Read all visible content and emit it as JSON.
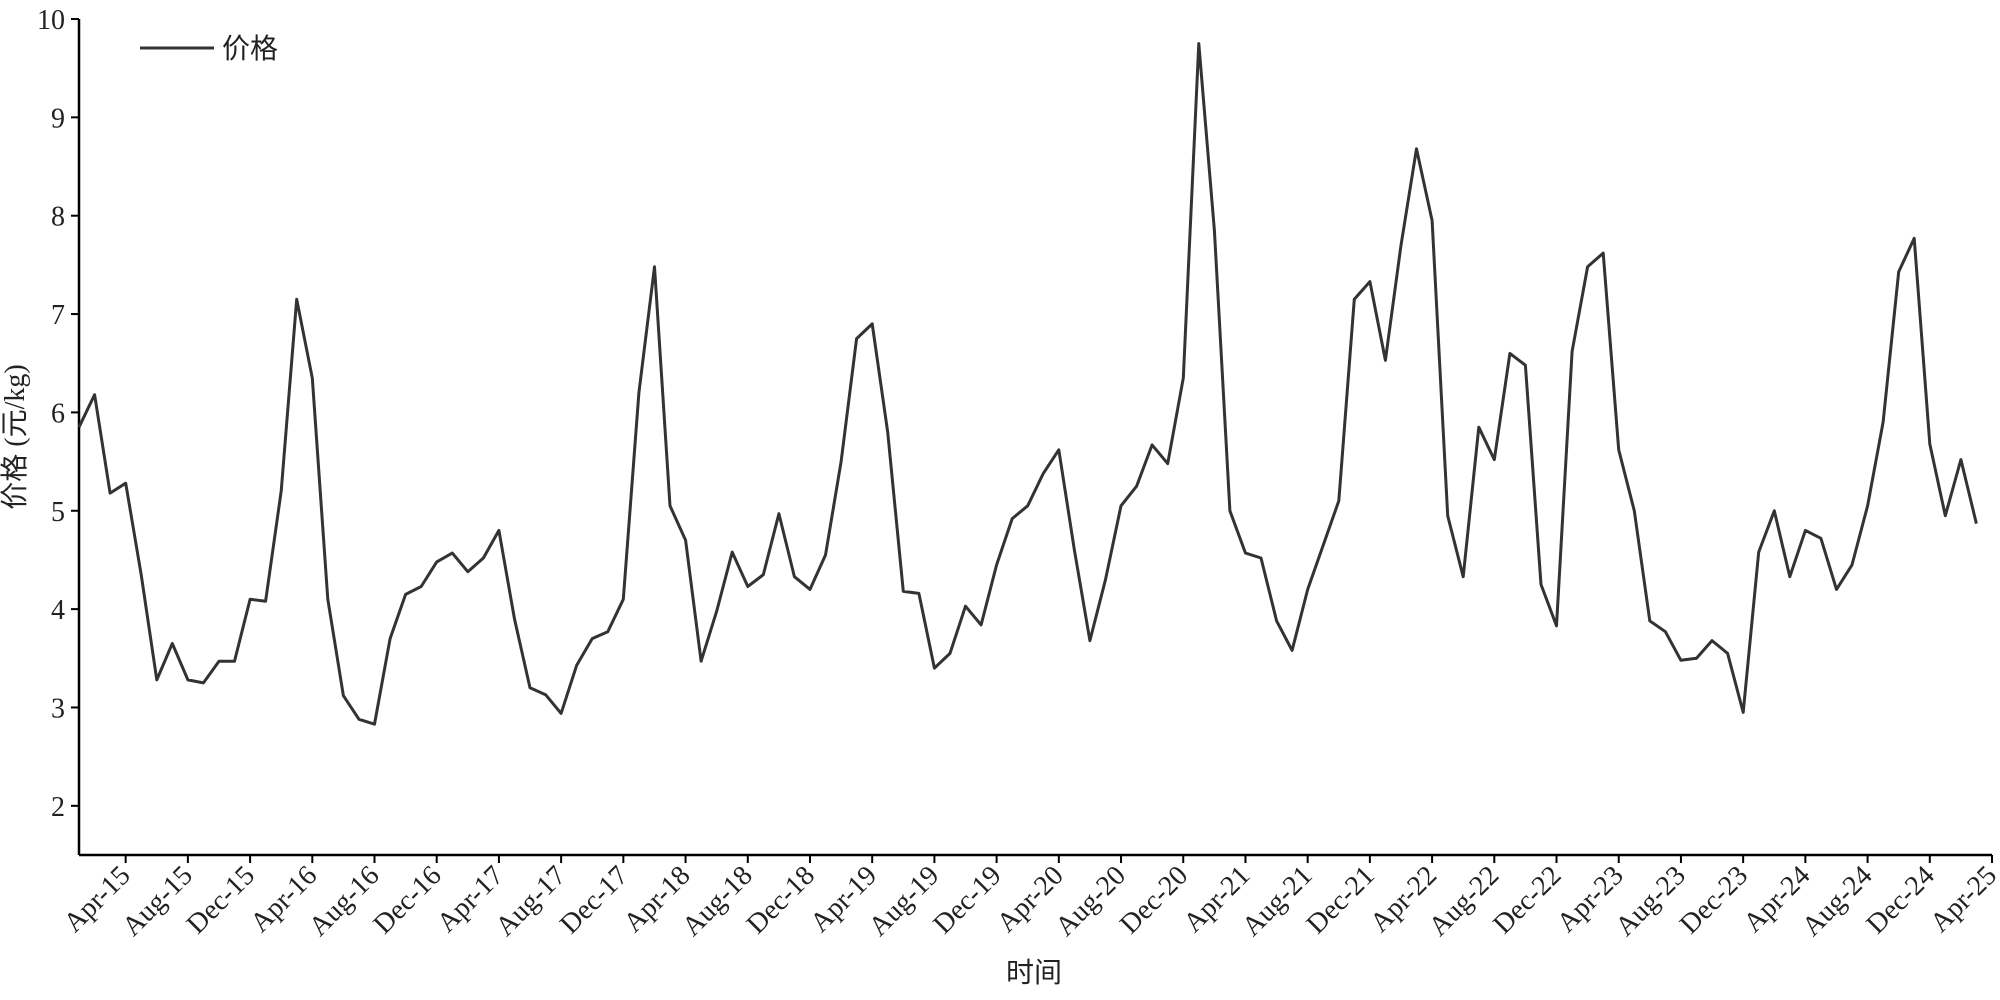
{
  "chart_data": {
    "type": "line",
    "x_label": "时间",
    "y_label": "价格 (元/kg)",
    "categories": [
      null,
      null,
      null,
      "Apr-15",
      null,
      null,
      null,
      "Aug-15",
      null,
      null,
      null,
      "Dec-15",
      null,
      null,
      null,
      "Apr-16",
      null,
      null,
      null,
      "Aug-16",
      null,
      null,
      null,
      "Dec-16",
      null,
      null,
      null,
      "Apr-17",
      null,
      null,
      null,
      "Aug-17",
      null,
      null,
      null,
      "Dec-17",
      null,
      null,
      null,
      "Apr-18",
      null,
      null,
      null,
      "Aug-18",
      null,
      null,
      null,
      "Dec-18",
      null,
      null,
      null,
      "Apr-19",
      null,
      null,
      null,
      "Aug-19",
      null,
      null,
      null,
      "Dec-19",
      null,
      null,
      null,
      "Apr-20",
      null,
      null,
      null,
      "Aug-20",
      null,
      null,
      null,
      "Dec-20",
      null,
      null,
      null,
      "Apr-21",
      null,
      null,
      null,
      "Aug-21",
      null,
      null,
      null,
      "Dec-21",
      null,
      null,
      null,
      "Apr-22",
      null,
      null,
      null,
      "Aug-22",
      null,
      null,
      null,
      "Dec-22",
      null,
      null,
      null,
      "Apr-23",
      null,
      null,
      null,
      "Aug-23",
      null,
      null,
      null,
      "Dec-23",
      null,
      null,
      null,
      "Apr-24",
      null,
      null,
      null,
      "Aug-24",
      null,
      null,
      null,
      "Dec-24",
      null,
      null,
      null,
      "Apr-25"
    ],
    "series": [
      {
        "name": "价格",
        "color": "#333333",
        "values": [
          5.85,
          6.18,
          5.18,
          5.28,
          4.35,
          3.28,
          3.65,
          3.28,
          3.25,
          3.47,
          3.47,
          4.1,
          4.08,
          5.2,
          7.15,
          6.35,
          4.1,
          3.12,
          2.88,
          2.83,
          3.7,
          4.15,
          4.23,
          4.48,
          4.57,
          4.38,
          4.52,
          4.8,
          3.9,
          3.2,
          3.13,
          2.94,
          3.43,
          3.7,
          3.77,
          4.1,
          6.2,
          7.48,
          5.05,
          4.7,
          3.47,
          3.98,
          4.58,
          4.23,
          4.35,
          4.97,
          4.33,
          4.2,
          4.55,
          5.5,
          6.75,
          6.9,
          5.8,
          4.18,
          4.16,
          3.4,
          3.55,
          4.03,
          3.84,
          4.45,
          4.92,
          5.05,
          5.38,
          5.62,
          4.6,
          3.68,
          4.3,
          5.05,
          5.25,
          5.67,
          5.48,
          6.35,
          9.75,
          7.85,
          5.0,
          4.57,
          4.52,
          3.88,
          3.58,
          4.2,
          4.65,
          5.1,
          7.15,
          7.33,
          6.53,
          7.7,
          8.68,
          7.95,
          4.95,
          4.33,
          5.85,
          5.52,
          6.6,
          6.48,
          4.25,
          3.83,
          6.62,
          7.48,
          7.62,
          5.62,
          5.0,
          3.88,
          3.77,
          3.48,
          3.5,
          3.68,
          3.55,
          2.95,
          4.58,
          5.0,
          4.33,
          4.8,
          4.72,
          4.2,
          4.45,
          5.05,
          5.9,
          7.43,
          7.77,
          5.68,
          4.95,
          5.52,
          4.87,
          null
        ]
      }
    ],
    "ylim": [
      1.5,
      10
    ],
    "yticks": [
      2,
      3,
      4,
      5,
      6,
      7,
      8,
      9,
      10
    ],
    "legend": "upper-left"
  }
}
